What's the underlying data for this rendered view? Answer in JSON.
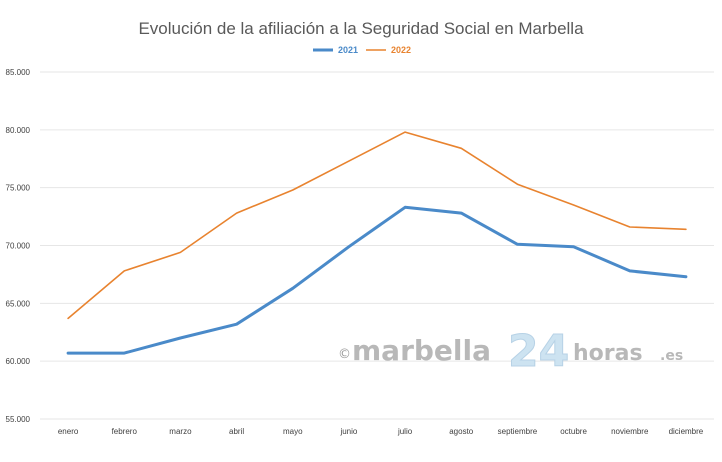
{
  "chart_data": {
    "type": "line",
    "title": "Evolución de la afiliación a la Seguridad Social en Marbella",
    "xlabel": "",
    "ylabel": "",
    "categories": [
      "enero",
      "febrero",
      "marzo",
      "abril",
      "mayo",
      "junio",
      "julio",
      "agosto",
      "septiembre",
      "octubre",
      "noviembre",
      "diciembre"
    ],
    "ylim": [
      55000,
      85000
    ],
    "yticks": [
      55000,
      60000,
      65000,
      70000,
      75000,
      80000,
      85000
    ],
    "ytick_labels": [
      "55.000",
      "60.000",
      "65.000",
      "70.000",
      "75.000",
      "80.000",
      "85.000"
    ],
    "grid": true,
    "legend_position": "top-center",
    "series": [
      {
        "name": "2021",
        "color": "#4a8ac9",
        "values": [
          60700,
          60700,
          62000,
          63200,
          66300,
          69900,
          73300,
          72800,
          70100,
          69900,
          67800,
          67300
        ]
      },
      {
        "name": "2022",
        "color": "#e8832f",
        "values": [
          63700,
          67800,
          69400,
          72800,
          74800,
          77300,
          79800,
          78400,
          75300,
          73500,
          71600,
          71400
        ]
      }
    ]
  },
  "watermark": {
    "copyright": "©",
    "brand": "marbella",
    "number": "24",
    "suffix": "horas",
    "domain": ".es"
  }
}
